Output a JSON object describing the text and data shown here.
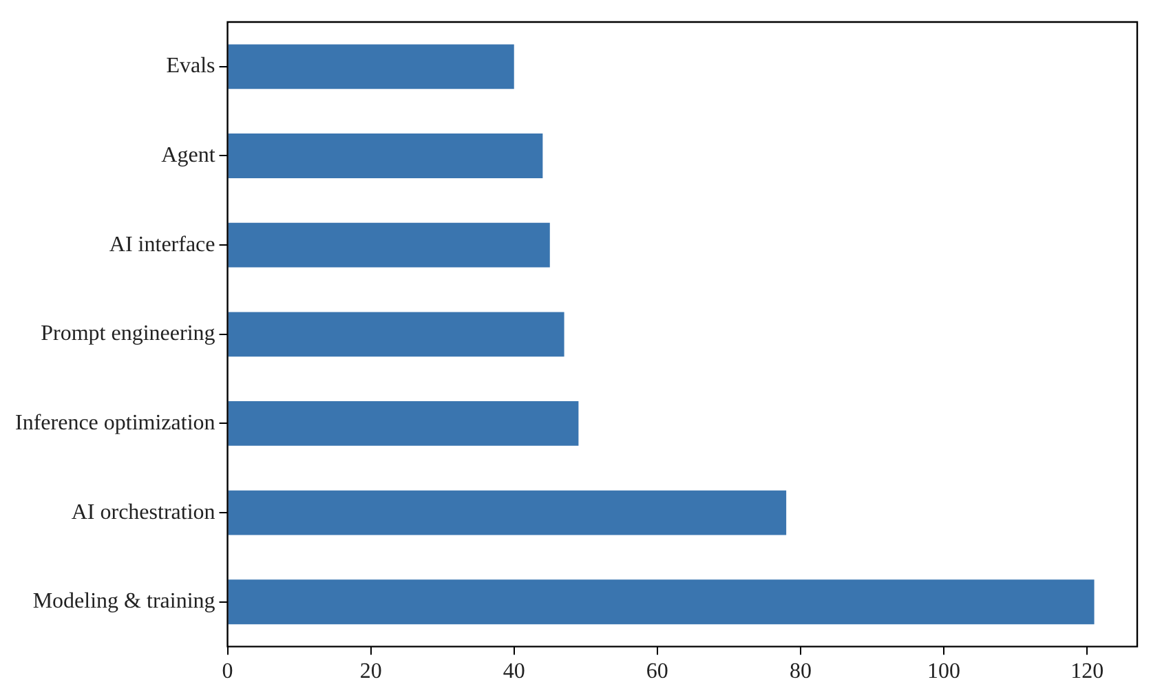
{
  "chart_data": {
    "type": "bar",
    "orientation": "horizontal",
    "categories": [
      "Evals",
      "Agent",
      "AI interface",
      "Prompt engineering",
      "Inference optimization",
      "AI orchestration",
      "Modeling & training"
    ],
    "values": [
      40,
      44,
      45,
      47,
      49,
      78,
      121
    ],
    "color": "#3a75af",
    "xlim": [
      0,
      127
    ],
    "xticks": [
      0,
      20,
      40,
      60,
      80,
      100,
      120
    ],
    "grid": false,
    "legend": false
  }
}
